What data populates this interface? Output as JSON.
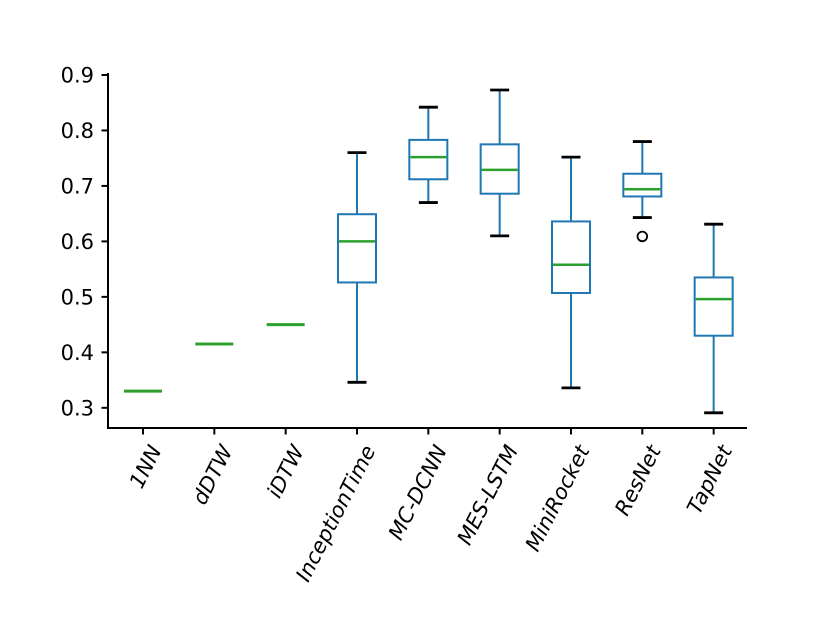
{
  "figure": {
    "title": "",
    "background": "#ffffff"
  },
  "chart_data": {
    "type": "box",
    "title": "",
    "xlabel": "",
    "ylabel": "",
    "grid": false,
    "legend": null,
    "categories": [
      "1NN",
      "dDTW",
      "iDTW",
      "InceptionTime",
      "MC-DCNN",
      "MES-LSTM",
      "MiniRocket",
      "ResNet",
      "TapNet"
    ],
    "series": [
      {
        "name": "1NN",
        "whislo": 0.33,
        "q1": 0.33,
        "med": 0.33,
        "q3": 0.33,
        "whishi": 0.33,
        "fliers": []
      },
      {
        "name": "dDTW",
        "whislo": 0.415,
        "q1": 0.415,
        "med": 0.415,
        "q3": 0.415,
        "whishi": 0.415,
        "fliers": []
      },
      {
        "name": "iDTW",
        "whislo": 0.45,
        "q1": 0.45,
        "med": 0.45,
        "q3": 0.45,
        "whishi": 0.45,
        "fliers": []
      },
      {
        "name": "InceptionTime",
        "whislo": 0.346,
        "q1": 0.526,
        "med": 0.6,
        "q3": 0.649,
        "whishi": 0.76,
        "fliers": []
      },
      {
        "name": "MC-DCNN",
        "whislo": 0.67,
        "q1": 0.712,
        "med": 0.752,
        "q3": 0.783,
        "whishi": 0.842,
        "fliers": []
      },
      {
        "name": "MES-LSTM",
        "whislo": 0.61,
        "q1": 0.686,
        "med": 0.729,
        "q3": 0.775,
        "whishi": 0.873,
        "fliers": []
      },
      {
        "name": "MiniRocket",
        "whislo": 0.336,
        "q1": 0.507,
        "med": 0.558,
        "q3": 0.636,
        "whishi": 0.752,
        "fliers": []
      },
      {
        "name": "ResNet",
        "whislo": 0.643,
        "q1": 0.681,
        "med": 0.694,
        "q3": 0.722,
        "whishi": 0.78,
        "fliers": [
          0.609
        ]
      },
      {
        "name": "TapNet",
        "whislo": 0.291,
        "q1": 0.43,
        "med": 0.496,
        "q3": 0.535,
        "whishi": 0.631,
        "fliers": []
      }
    ],
    "yticks": [
      0.3,
      0.4,
      0.5,
      0.6,
      0.7,
      0.8,
      0.9
    ],
    "ylim": [
      0.2636,
      0.9036
    ],
    "colors": {
      "box": "#1f77b4",
      "whisker": "#1f77b4",
      "median": "#2ca02c",
      "cap": "#000000",
      "flier": "#000000",
      "axis": "#000000"
    }
  }
}
